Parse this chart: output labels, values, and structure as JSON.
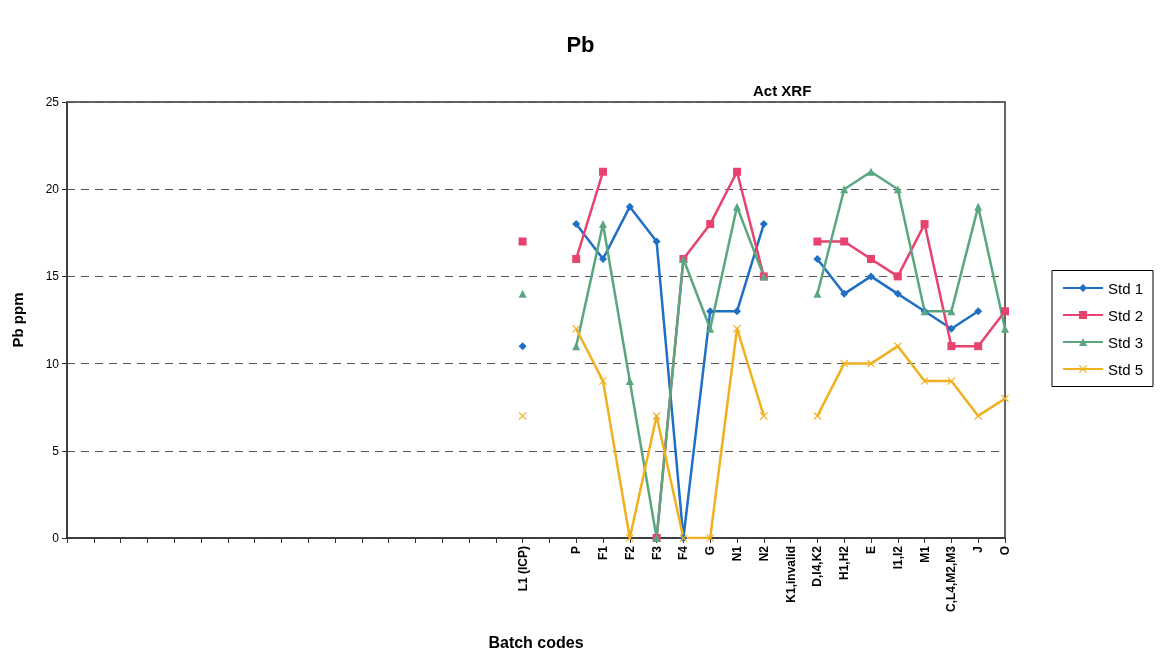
{
  "chart_data": {
    "type": "line",
    "title": "Pb",
    "subtitle": "Act XRF",
    "xlabel": "Batch codes",
    "ylabel": "Pb ppm",
    "categories": [
      null,
      null,
      null,
      null,
      null,
      null,
      null,
      null,
      null,
      null,
      null,
      null,
      null,
      null,
      null,
      null,
      null,
      "L1 (ICP)",
      null,
      "P",
      "F1",
      "F2",
      "F3",
      "F4",
      "G",
      "N1",
      "N2",
      "K1,invalid",
      "D,I4,K2",
      "H1,H2",
      "E",
      "I1,I2",
      "M1",
      "C,L4,M2,M3",
      "J",
      "O"
    ],
    "series": [
      {
        "name": "Std 1",
        "color": "#1f6fc4",
        "marker": "diamond",
        "values": [
          null,
          null,
          null,
          null,
          null,
          null,
          null,
          null,
          null,
          null,
          null,
          null,
          null,
          null,
          null,
          null,
          null,
          11,
          null,
          18,
          16,
          19,
          17,
          0,
          13,
          13,
          18,
          null,
          16,
          14,
          15,
          14,
          13,
          12,
          13,
          null
        ]
      },
      {
        "name": "Std 2",
        "color": "#e8426e",
        "marker": "square",
        "values": [
          null,
          null,
          null,
          null,
          null,
          null,
          null,
          null,
          null,
          null,
          null,
          null,
          null,
          null,
          null,
          null,
          null,
          17,
          null,
          16,
          21,
          null,
          0,
          16,
          18,
          21,
          15,
          null,
          17,
          17,
          16,
          15,
          18,
          11,
          11,
          13
        ]
      },
      {
        "name": "Std 3",
        "color": "#5aa67f",
        "marker": "triangle",
        "values": [
          null,
          null,
          null,
          null,
          null,
          null,
          null,
          null,
          null,
          null,
          null,
          null,
          null,
          null,
          null,
          null,
          null,
          14,
          null,
          11,
          18,
          9,
          0,
          16,
          12,
          19,
          15,
          null,
          14,
          20,
          21,
          20,
          13,
          13,
          19,
          12
        ]
      },
      {
        "name": "Std 5",
        "color": "#f0b020",
        "marker": "cross",
        "values": [
          null,
          null,
          null,
          null,
          null,
          null,
          null,
          null,
          null,
          null,
          null,
          null,
          null,
          null,
          null,
          null,
          null,
          7,
          null,
          12,
          9,
          0,
          7,
          0,
          0,
          12,
          7,
          null,
          7,
          10,
          10,
          11,
          9,
          9,
          7,
          8
        ]
      }
    ],
    "ylim": [
      0,
      25
    ],
    "yticks": [
      0,
      5,
      10,
      15,
      20,
      25
    ],
    "grid": "y",
    "legend": "right",
    "line_style": "solid"
  }
}
